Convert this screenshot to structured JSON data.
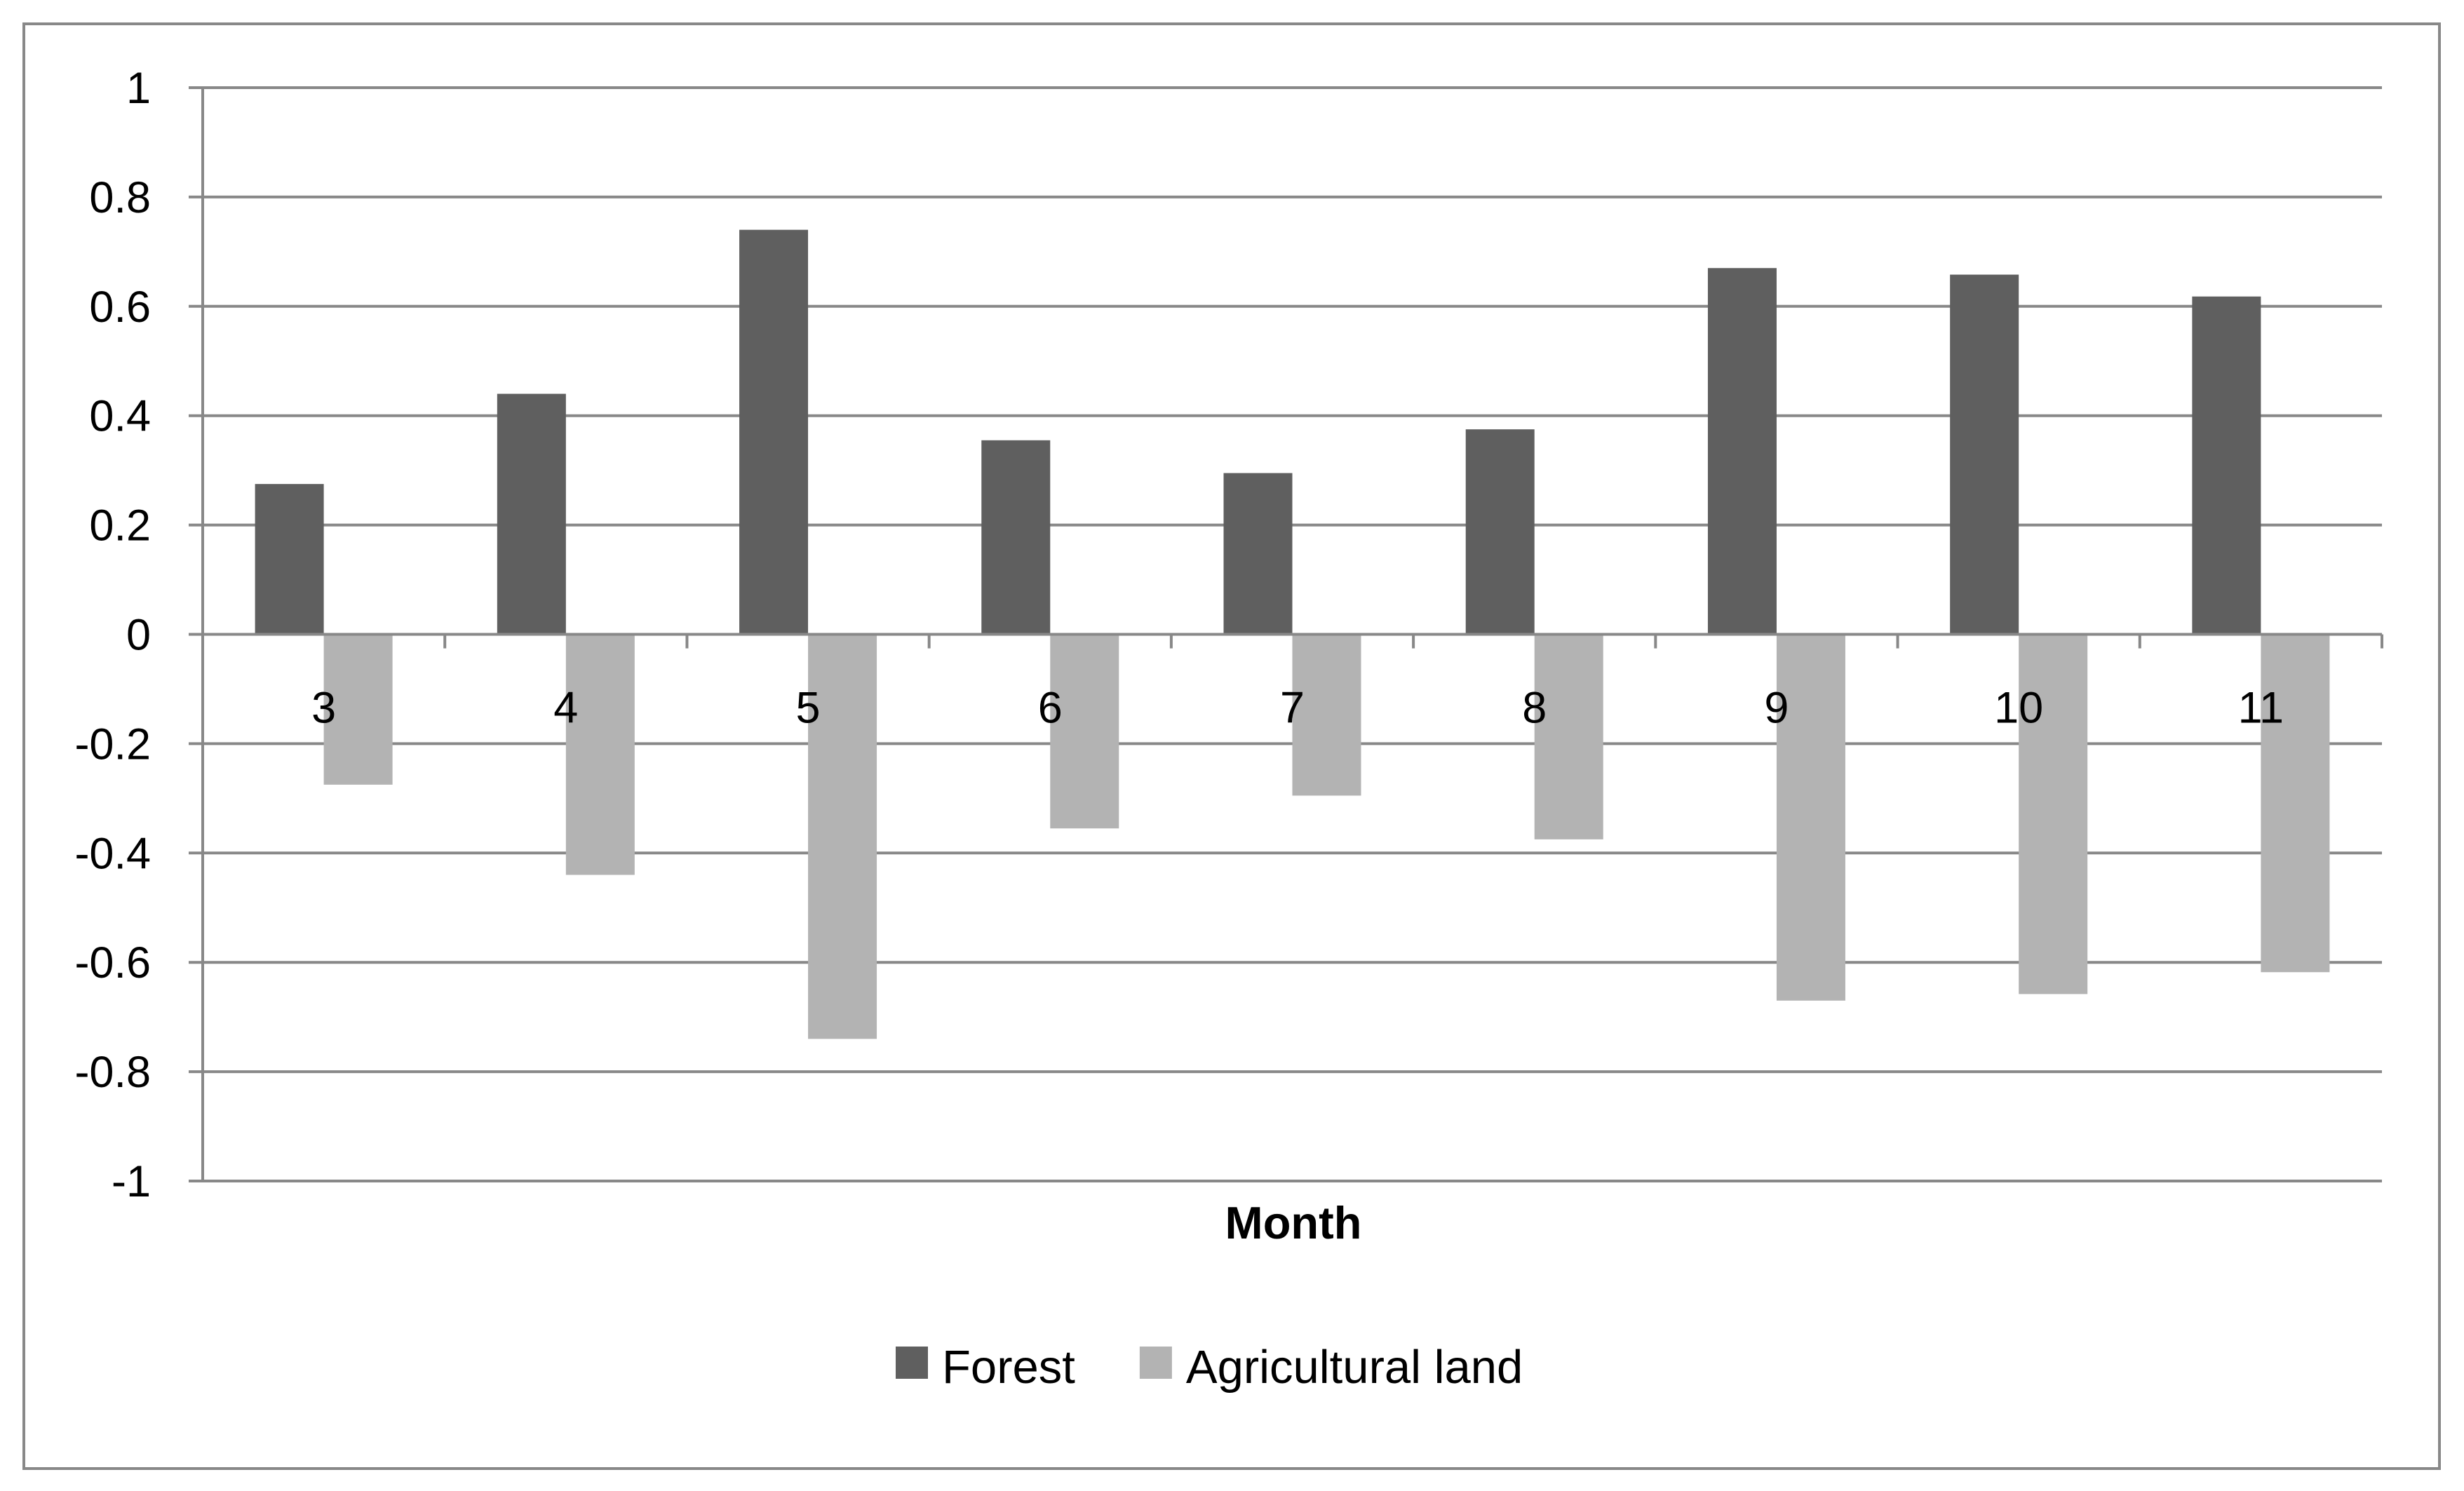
{
  "chart_data": {
    "type": "bar",
    "categories": [
      "3",
      "4",
      "5",
      "6",
      "7",
      "8",
      "9",
      "10",
      "11"
    ],
    "series": [
      {
        "name": "Forest",
        "color": "#5f5f5f",
        "values": [
          0.275,
          0.44,
          0.74,
          0.355,
          0.295,
          0.375,
          0.67,
          0.658,
          0.618
        ]
      },
      {
        "name": "Agricultural land",
        "color": "#b3b3b3",
        "values": [
          -0.275,
          -0.44,
          -0.74,
          -0.355,
          -0.295,
          -0.375,
          -0.67,
          -0.658,
          -0.618
        ]
      }
    ],
    "xlabel": "Month",
    "ylabel": "",
    "ylim": [
      -1,
      1
    ],
    "yticks": [
      "1",
      "0.8",
      "0.6",
      "0.4",
      "0.2",
      "0",
      "-0.2",
      "-0.4",
      "-0.6",
      "-0.8",
      "-1"
    ],
    "grid": true,
    "legend_position": "bottom-center"
  }
}
